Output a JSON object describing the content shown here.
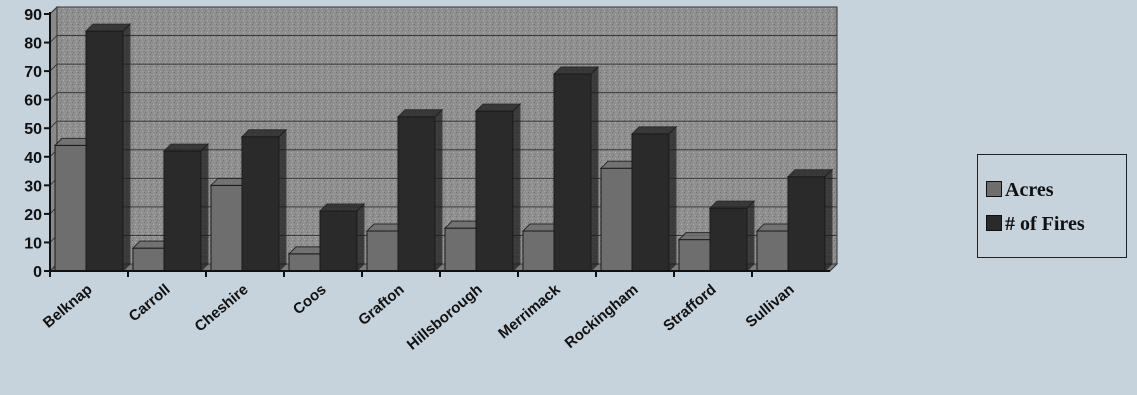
{
  "chart_data": {
    "type": "bar",
    "categories": [
      "Belknap",
      "Carroll",
      "Cheshire",
      "Coos",
      "Grafton",
      "Hillsborough",
      "Merrimack",
      "Rockingham",
      "Strafford",
      "Sullivan"
    ],
    "series": [
      {
        "name": "Acres",
        "values": [
          44,
          8,
          30,
          6,
          14,
          15,
          14,
          36,
          11,
          14
        ]
      },
      {
        "name": "# of Fires",
        "values": [
          84,
          42,
          47,
          21,
          54,
          56,
          69,
          48,
          22,
          33
        ]
      }
    ],
    "title": "",
    "xlabel": "",
    "ylabel": "",
    "ylim": [
      0,
      90
    ],
    "yticks": [
      "0",
      "10",
      "20",
      "30",
      "40",
      "50",
      "60",
      "70",
      "80",
      "90"
    ],
    "grid": true,
    "legend_position": "right",
    "colors": {
      "background": "#c6d2dc",
      "plot_fill": "#8f8f8f",
      "acres": "#6e6e6e",
      "fires": "#2a2a2a",
      "axis": "#111111"
    }
  }
}
